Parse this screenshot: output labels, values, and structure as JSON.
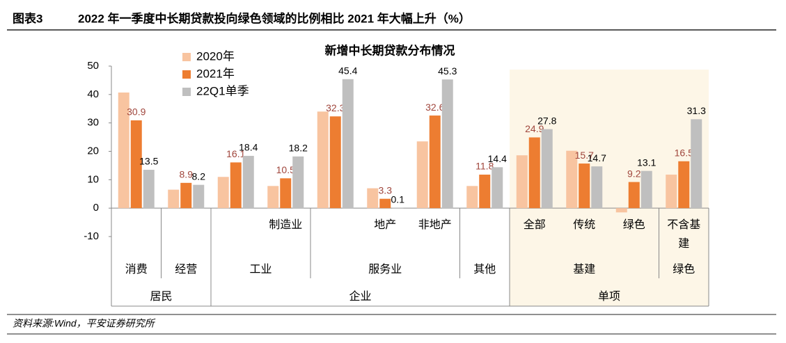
{
  "header": {
    "label": "图表3",
    "title": "2022 年一季度中长期贷款投向绿色领域的比例相比 2021 年大幅上升（%）"
  },
  "source": "资料来源:Wind，平安证券研究所",
  "chart_data": {
    "type": "bar",
    "title": "新增中长期贷款分布情况",
    "categories": [
      null,
      null,
      null,
      "制造业",
      null,
      "地产",
      "非地产",
      null,
      "全部",
      "传统",
      "绿色",
      "不含基建"
    ],
    "category_groups": [
      [
        {
          "label": "消费",
          "span": 1
        },
        {
          "label": "经营",
          "span": 1
        },
        {
          "label": "工业",
          "span": 2
        },
        {
          "label": "服务业",
          "span": 3
        },
        {
          "label": "其他",
          "span": 1
        },
        {
          "label": "基建",
          "span": 3
        },
        {
          "label": "绿色",
          "span": 1
        }
      ],
      [
        {
          "label": "居民",
          "span": 2
        },
        {
          "label": "企业",
          "span": 6
        },
        {
          "label": "单项",
          "span": 4,
          "shaded": true
        }
      ]
    ],
    "series": [
      {
        "name": "2020年",
        "color": "#f8c4a0",
        "data_labels": false,
        "values": [
          40.7,
          6.5,
          11,
          7.8,
          34,
          7,
          23.5,
          7.8,
          18.6,
          20.2,
          -1.5,
          11.8
        ]
      },
      {
        "name": "2021年",
        "color": "#ed7d31",
        "data_labels": true,
        "label_color": "#a0463c",
        "values": [
          30.9,
          8.9,
          16.1,
          10.5,
          32.3,
          3.3,
          32.6,
          11.8,
          24.9,
          15.7,
          9.2,
          16.5
        ]
      },
      {
        "name": "22Q1单季",
        "color": "#bfbfbf",
        "data_labels": true,
        "label_color": "#000000",
        "values": [
          13.5,
          8.2,
          18.4,
          18.2,
          45.4,
          0.1,
          45.3,
          14.4,
          27.8,
          14.7,
          13.1,
          31.3
        ]
      }
    ],
    "ylim": [
      -10,
      50
    ],
    "yticks": [
      -10,
      0,
      10,
      20,
      30,
      40,
      50
    ],
    "grid": false,
    "legend": "top-left",
    "shade_color": "#fdf6e7"
  }
}
